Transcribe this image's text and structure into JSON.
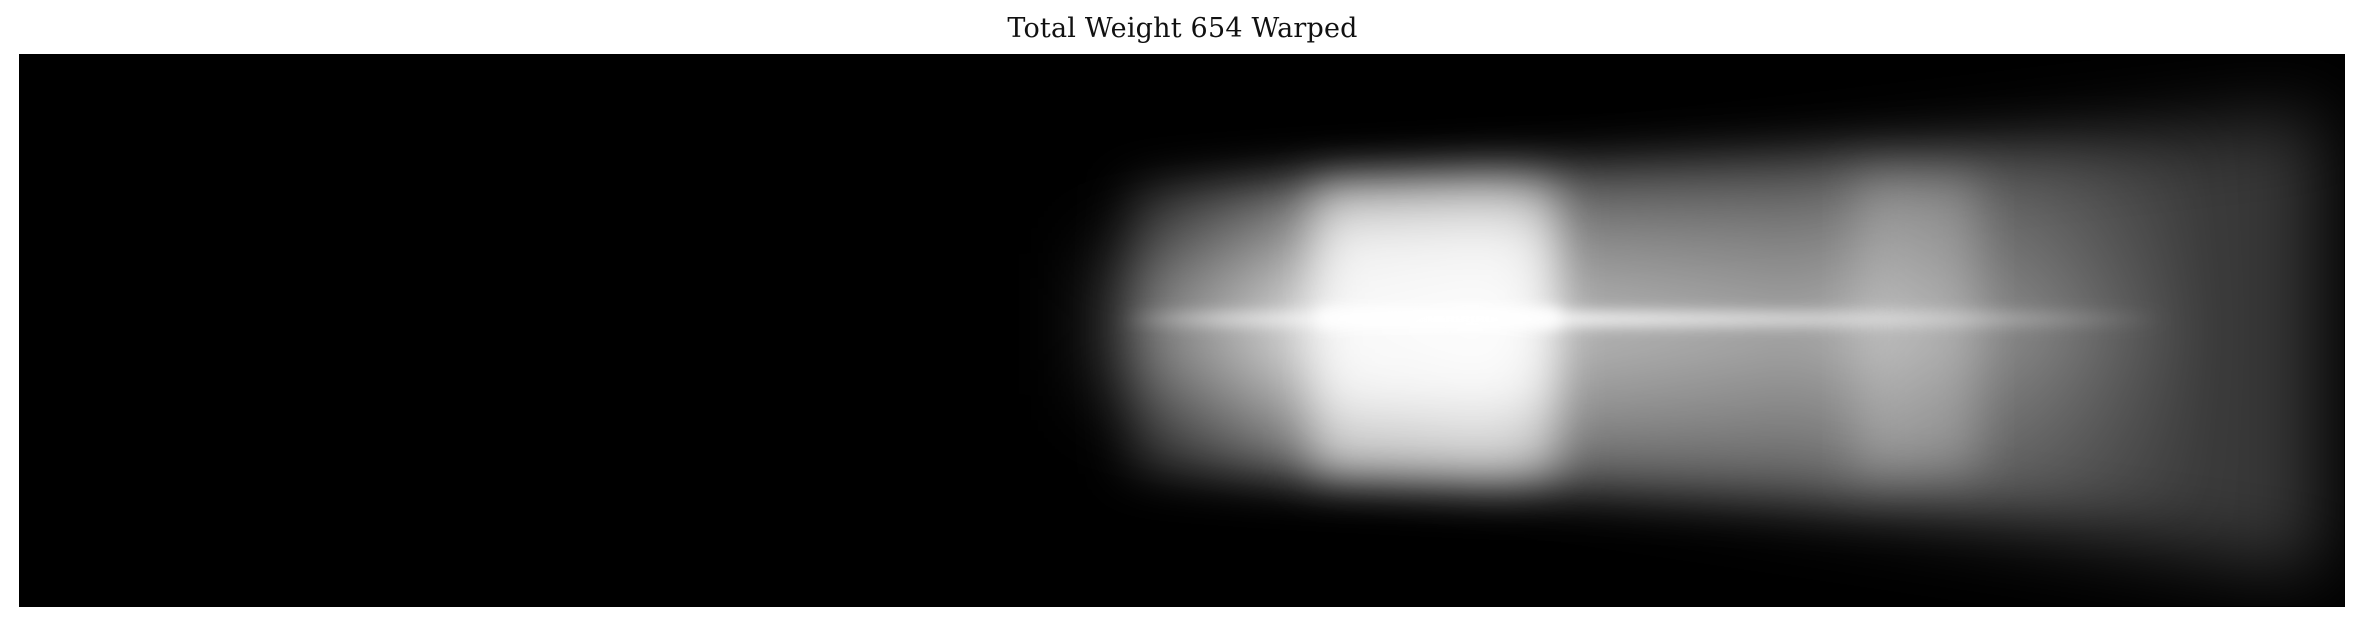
{
  "figure": {
    "title": "Total Weight 654 Warped"
  },
  "image": {
    "colormap": "grayscale",
    "background_color": "#000000",
    "content": "blurred bright band on black background",
    "axes_visible": false
  }
}
